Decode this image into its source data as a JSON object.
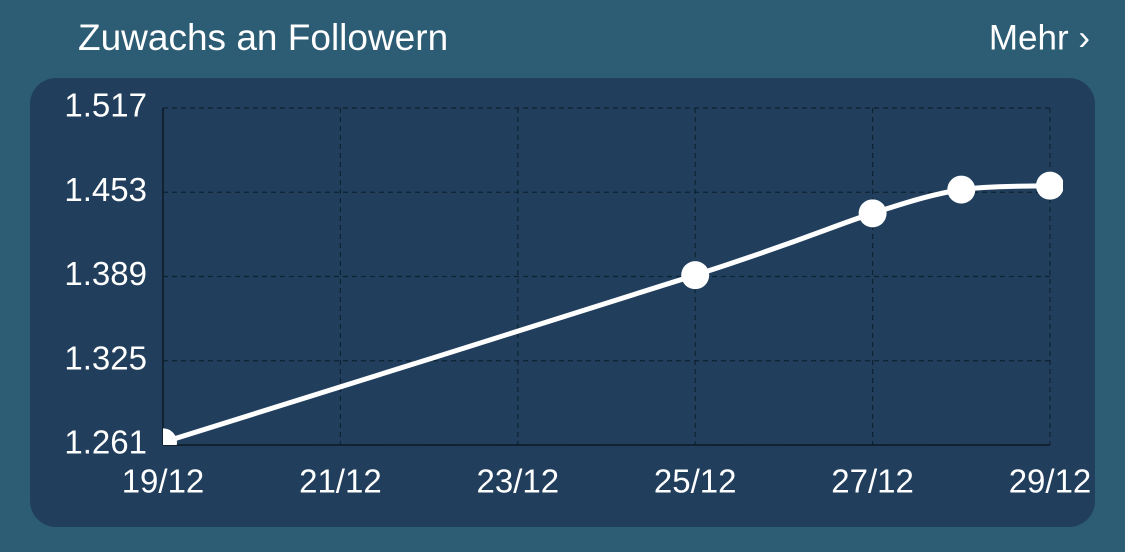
{
  "header": {
    "title": "Zuwachs an Followern",
    "link": "Mehr ›"
  },
  "chart_data": {
    "type": "line",
    "x": [
      "19/12",
      "25/12",
      "27/12",
      "28/12",
      "29/12"
    ],
    "series": [
      {
        "color": "#ffffff",
        "values": [
          1263,
          1390,
          1437,
          1455,
          1458
        ]
      }
    ],
    "xlim": [
      "19/12",
      "29/12"
    ],
    "xticks": [
      "19/12",
      "21/12",
      "23/12",
      "25/12",
      "27/12",
      "29/12"
    ],
    "ylim": [
      1261,
      1517
    ],
    "yticks": [
      {
        "value": 1261,
        "label": "1.261"
      },
      {
        "value": 1325,
        "label": "1.325"
      },
      {
        "value": 1389,
        "label": "1.389"
      },
      {
        "value": 1453,
        "label": "1.453"
      },
      {
        "value": 1517,
        "label": "1.517"
      }
    ],
    "grid": true
  }
}
